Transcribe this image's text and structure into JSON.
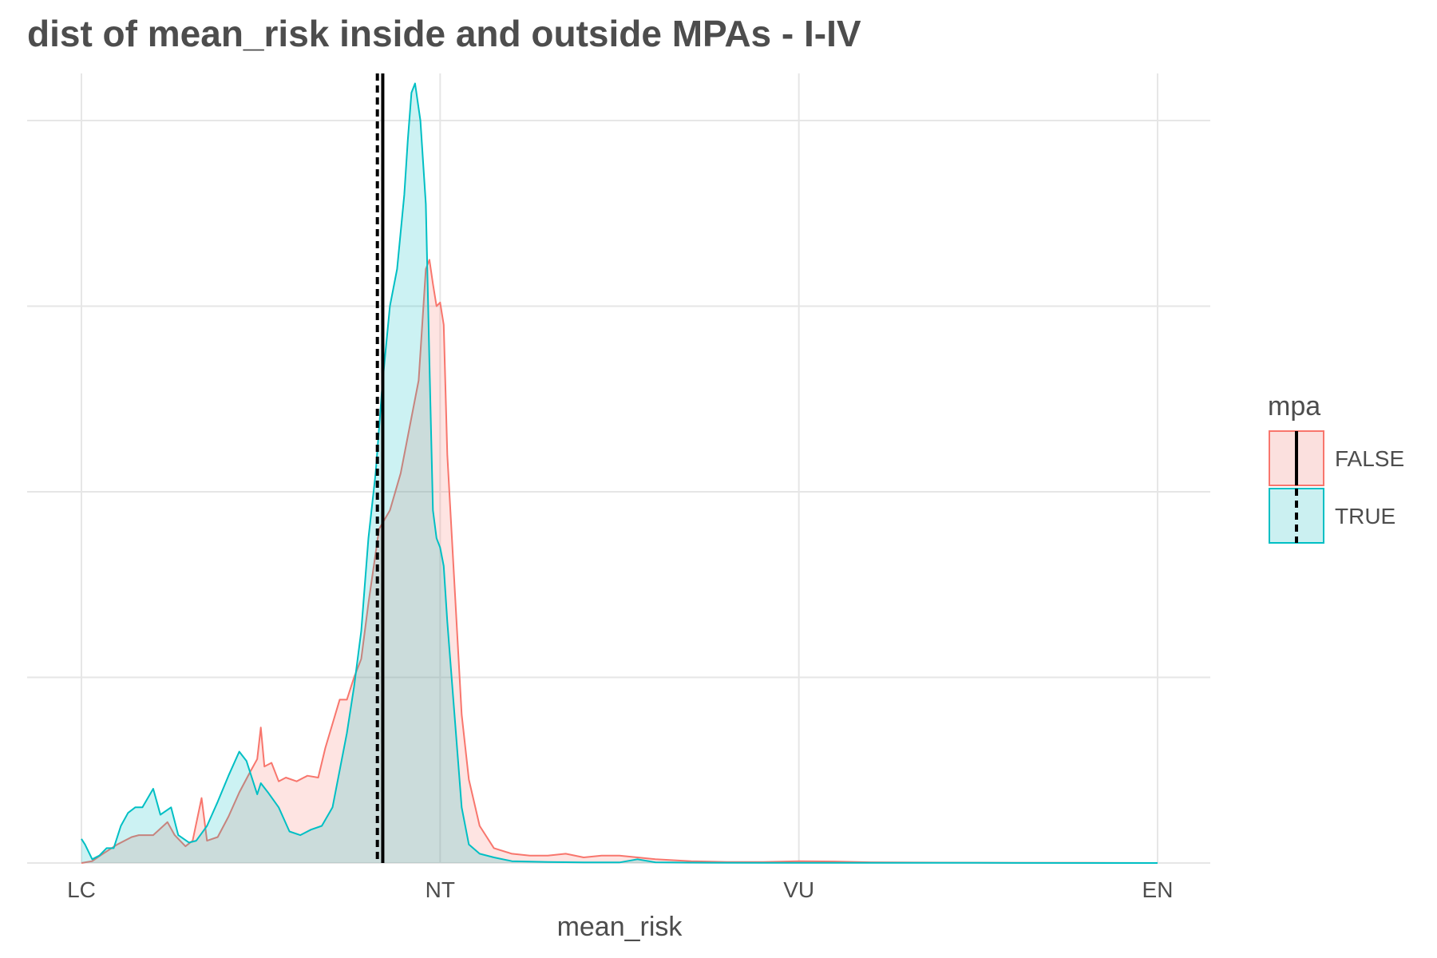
{
  "chart_data": {
    "type": "area",
    "title": "dist of mean_risk inside and outside MPAs - I-IV",
    "xlabel": "mean_risk",
    "ylabel": "",
    "xlim": [
      0,
      3
    ],
    "ylim": [
      0,
      4.2
    ],
    "x_ticks": [
      {
        "value": 0,
        "label": "LC"
      },
      {
        "value": 1,
        "label": "NT"
      },
      {
        "value": 2,
        "label": "VU"
      },
      {
        "value": 3,
        "label": "EN"
      }
    ],
    "y_grid": [
      0,
      1,
      2,
      3,
      4
    ],
    "grid": true,
    "legend": {
      "title": "mpa",
      "position": "right"
    },
    "series": [
      {
        "name": "FALSE",
        "color": "#F8766D",
        "fill": "#fbe0de",
        "mean": 0.84,
        "mean_line": "solid",
        "points": [
          [
            0,
            0
          ],
          [
            0.03,
            0.01
          ],
          [
            0.06,
            0.05
          ],
          [
            0.1,
            0.1
          ],
          [
            0.14,
            0.14
          ],
          [
            0.16,
            0.15
          ],
          [
            0.2,
            0.15
          ],
          [
            0.24,
            0.22
          ],
          [
            0.26,
            0.15
          ],
          [
            0.29,
            0.09
          ],
          [
            0.31,
            0.12
          ],
          [
            0.335,
            0.35
          ],
          [
            0.35,
            0.12
          ],
          [
            0.38,
            0.14
          ],
          [
            0.41,
            0.25
          ],
          [
            0.44,
            0.38
          ],
          [
            0.47,
            0.49
          ],
          [
            0.49,
            0.56
          ],
          [
            0.5,
            0.73
          ],
          [
            0.51,
            0.52
          ],
          [
            0.53,
            0.54
          ],
          [
            0.55,
            0.44
          ],
          [
            0.57,
            0.46
          ],
          [
            0.6,
            0.44
          ],
          [
            0.63,
            0.47
          ],
          [
            0.66,
            0.46
          ],
          [
            0.68,
            0.62
          ],
          [
            0.7,
            0.75
          ],
          [
            0.72,
            0.88
          ],
          [
            0.74,
            0.88
          ],
          [
            0.76,
            1.0
          ],
          [
            0.78,
            1.1
          ],
          [
            0.8,
            1.4
          ],
          [
            0.815,
            1.6
          ],
          [
            0.83,
            1.8
          ],
          [
            0.86,
            1.9
          ],
          [
            0.89,
            2.1
          ],
          [
            0.92,
            2.4
          ],
          [
            0.94,
            2.6
          ],
          [
            0.96,
            3.2
          ],
          [
            0.97,
            3.25
          ],
          [
            0.98,
            3.12
          ],
          [
            0.99,
            3.0
          ],
          [
            1.0,
            3.02
          ],
          [
            1.01,
            2.9
          ],
          [
            1.02,
            2.2
          ],
          [
            1.04,
            1.5
          ],
          [
            1.06,
            0.8
          ],
          [
            1.08,
            0.45
          ],
          [
            1.11,
            0.2
          ],
          [
            1.15,
            0.08
          ],
          [
            1.2,
            0.05
          ],
          [
            1.25,
            0.04
          ],
          [
            1.3,
            0.04
          ],
          [
            1.35,
            0.05
          ],
          [
            1.4,
            0.03
          ],
          [
            1.45,
            0.04
          ],
          [
            1.5,
            0.04
          ],
          [
            1.55,
            0.03
          ],
          [
            1.6,
            0.02
          ],
          [
            1.7,
            0.01
          ],
          [
            1.8,
            0.005
          ],
          [
            1.9,
            0.005
          ],
          [
            2.0,
            0.01
          ],
          [
            2.1,
            0.008
          ],
          [
            2.2,
            0.004
          ],
          [
            2.4,
            0.002
          ],
          [
            2.6,
            0.001
          ],
          [
            2.8,
            0.001
          ],
          [
            3.0,
            0
          ]
        ]
      },
      {
        "name": "TRUE",
        "color": "#00BFC4",
        "fill": "#cbf0f1",
        "mean": 0.825,
        "mean_line": "dashed",
        "points": [
          [
            0,
            0.13
          ],
          [
            0.01,
            0.1
          ],
          [
            0.03,
            0.02
          ],
          [
            0.05,
            0.04
          ],
          [
            0.07,
            0.08
          ],
          [
            0.09,
            0.08
          ],
          [
            0.11,
            0.2
          ],
          [
            0.13,
            0.27
          ],
          [
            0.15,
            0.3
          ],
          [
            0.17,
            0.3
          ],
          [
            0.2,
            0.4
          ],
          [
            0.22,
            0.26
          ],
          [
            0.25,
            0.3
          ],
          [
            0.27,
            0.15
          ],
          [
            0.3,
            0.11
          ],
          [
            0.32,
            0.12
          ],
          [
            0.35,
            0.2
          ],
          [
            0.38,
            0.33
          ],
          [
            0.41,
            0.47
          ],
          [
            0.44,
            0.6
          ],
          [
            0.46,
            0.55
          ],
          [
            0.49,
            0.37
          ],
          [
            0.5,
            0.43
          ],
          [
            0.52,
            0.38
          ],
          [
            0.55,
            0.3
          ],
          [
            0.58,
            0.17
          ],
          [
            0.61,
            0.15
          ],
          [
            0.64,
            0.18
          ],
          [
            0.67,
            0.2
          ],
          [
            0.7,
            0.3
          ],
          [
            0.72,
            0.5
          ],
          [
            0.74,
            0.7
          ],
          [
            0.76,
            0.95
          ],
          [
            0.78,
            1.25
          ],
          [
            0.8,
            1.75
          ],
          [
            0.82,
            2.1
          ],
          [
            0.84,
            2.6
          ],
          [
            0.86,
            3.0
          ],
          [
            0.88,
            3.2
          ],
          [
            0.9,
            3.6
          ],
          [
            0.91,
            3.9
          ],
          [
            0.92,
            4.15
          ],
          [
            0.93,
            4.2
          ],
          [
            0.945,
            4.0
          ],
          [
            0.96,
            3.55
          ],
          [
            0.97,
            2.7
          ],
          [
            0.98,
            1.9
          ],
          [
            0.99,
            1.75
          ],
          [
            1.0,
            1.7
          ],
          [
            1.01,
            1.6
          ],
          [
            1.02,
            1.3
          ],
          [
            1.04,
            0.8
          ],
          [
            1.06,
            0.3
          ],
          [
            1.08,
            0.1
          ],
          [
            1.11,
            0.05
          ],
          [
            1.15,
            0.03
          ],
          [
            1.2,
            0.01
          ],
          [
            1.3,
            0.005
          ],
          [
            1.4,
            0.003
          ],
          [
            1.5,
            0.003
          ],
          [
            1.55,
            0.02
          ],
          [
            1.6,
            0.004
          ],
          [
            1.7,
            0.002
          ],
          [
            1.9,
            0.001
          ],
          [
            2.1,
            0.001
          ],
          [
            2.5,
            0.001
          ],
          [
            3.0,
            0
          ]
        ]
      }
    ]
  }
}
